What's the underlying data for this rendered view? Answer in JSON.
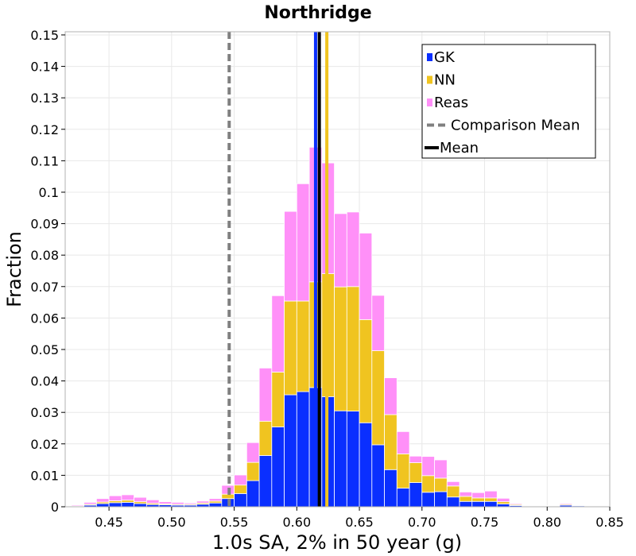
{
  "chart_data": {
    "type": "bar",
    "stacked": true,
    "title": "Northridge",
    "xlabel": "1.0s SA, 2% in 50 year (g)",
    "ylabel": "Fraction",
    "xlim": [
      0.415,
      0.85
    ],
    "ylim": [
      0,
      0.151
    ],
    "bin_width": 0.01,
    "grid": true,
    "legend_position": "top-right",
    "x_ticks": [
      {
        "value": 0.45,
        "label": "0.45"
      },
      {
        "value": 0.5,
        "label": "0.50"
      },
      {
        "value": 0.55,
        "label": "0.55"
      },
      {
        "value": 0.6,
        "label": "0.60"
      },
      {
        "value": 0.65,
        "label": "0.65"
      },
      {
        "value": 0.7,
        "label": "0.70"
      },
      {
        "value": 0.75,
        "label": "0.75"
      },
      {
        "value": 0.8,
        "label": "0.80"
      },
      {
        "value": 0.85,
        "label": "0.85"
      }
    ],
    "y_ticks": [
      {
        "value": 0,
        "label": "0"
      },
      {
        "value": 0.01,
        "label": "0.01"
      },
      {
        "value": 0.02,
        "label": "0.02"
      },
      {
        "value": 0.03,
        "label": "0.03"
      },
      {
        "value": 0.04,
        "label": "0.04"
      },
      {
        "value": 0.05,
        "label": "0.05"
      },
      {
        "value": 0.06,
        "label": "0.06"
      },
      {
        "value": 0.07,
        "label": "0.07"
      },
      {
        "value": 0.08,
        "label": "0.08"
      },
      {
        "value": 0.09,
        "label": "0.09"
      },
      {
        "value": 0.1,
        "label": "0.1"
      },
      {
        "value": 0.11,
        "label": "0.11"
      },
      {
        "value": 0.12,
        "label": "0.12"
      },
      {
        "value": 0.13,
        "label": "0.13"
      },
      {
        "value": 0.14,
        "label": "0.14"
      },
      {
        "value": 0.15,
        "label": "0.15"
      }
    ],
    "x": [
      0.425,
      0.435,
      0.445,
      0.455,
      0.465,
      0.475,
      0.485,
      0.495,
      0.505,
      0.515,
      0.525,
      0.535,
      0.545,
      0.555,
      0.565,
      0.575,
      0.585,
      0.595,
      0.605,
      0.615,
      0.625,
      0.635,
      0.645,
      0.655,
      0.665,
      0.675,
      0.685,
      0.695,
      0.705,
      0.715,
      0.725,
      0.735,
      0.745,
      0.755,
      0.765,
      0.775,
      0.785,
      0.795,
      0.805,
      0.815,
      0.825,
      0.835
    ],
    "series": [
      {
        "name": "GK",
        "color": "#0a2fff",
        "values": [
          0.0002,
          0.0005,
          0.001,
          0.0013,
          0.0014,
          0.001,
          0.0007,
          0.0006,
          0.0005,
          0.0005,
          0.0008,
          0.0012,
          0.0026,
          0.0042,
          0.0083,
          0.0163,
          0.0254,
          0.0356,
          0.0366,
          0.0379,
          0.035,
          0.0305,
          0.0304,
          0.0267,
          0.0197,
          0.0118,
          0.0059,
          0.0077,
          0.0046,
          0.0048,
          0.0031,
          0.0017,
          0.0017,
          0.0017,
          0.0009,
          0.0004,
          0.0002,
          0.0001,
          0.0001,
          0.0005,
          0.0003,
          0.0001
        ]
      },
      {
        "name": "NN",
        "color": "#f0c420",
        "values": [
          0.0001,
          0.0003,
          0.0005,
          0.0006,
          0.0007,
          0.0006,
          0.0004,
          0.0003,
          0.0003,
          0.0003,
          0.0004,
          0.0006,
          0.0014,
          0.0027,
          0.0058,
          0.0109,
          0.0174,
          0.0298,
          0.0288,
          0.0336,
          0.0391,
          0.0394,
          0.0396,
          0.0328,
          0.0299,
          0.0175,
          0.0109,
          0.0063,
          0.0053,
          0.0043,
          0.0035,
          0.0016,
          0.0011,
          0.0011,
          0.0007,
          0.0003,
          0.0002,
          0.0001,
          0.0001,
          0.0003,
          0.0002,
          0.0001
        ]
      },
      {
        "name": "Reas",
        "color": "#ff90f8",
        "values": [
          0.0003,
          0.0006,
          0.0011,
          0.0016,
          0.0017,
          0.0014,
          0.0011,
          0.0007,
          0.0006,
          0.0004,
          0.0006,
          0.0008,
          0.0028,
          0.0032,
          0.0063,
          0.0169,
          0.0243,
          0.0285,
          0.0373,
          0.0428,
          0.0352,
          0.0233,
          0.0237,
          0.0275,
          0.0176,
          0.0117,
          0.0071,
          0.0021,
          0.0061,
          0.0058,
          0.0014,
          0.0014,
          0.0017,
          0.0022,
          0.0011,
          0.0003,
          0.0002,
          0.0001,
          0.0001,
          0.0003,
          0.0002,
          0.0001
        ]
      }
    ],
    "reference_lines": [
      {
        "name": "Comparison Mean",
        "x": 0.546,
        "color": "#808080",
        "style": "dashed"
      },
      {
        "name": "GK mean",
        "x": 0.615,
        "color": "#0a2fff",
        "style": "solid"
      },
      {
        "name": "NN mean",
        "x": 0.624,
        "color": "#f0c420",
        "style": "solid"
      },
      {
        "name": "Mean",
        "x": 0.618,
        "color": "#000000",
        "style": "solid"
      }
    ],
    "legend": [
      {
        "label": "GK",
        "kind": "box",
        "color": "#0a2fff"
      },
      {
        "label": "NN",
        "kind": "box",
        "color": "#f0c420"
      },
      {
        "label": "Reas",
        "kind": "box",
        "color": "#ff90f8"
      },
      {
        "label": "Comparison Mean",
        "kind": "dashed",
        "color": "#808080"
      },
      {
        "label": "Mean",
        "kind": "line",
        "color": "#000000"
      }
    ]
  }
}
